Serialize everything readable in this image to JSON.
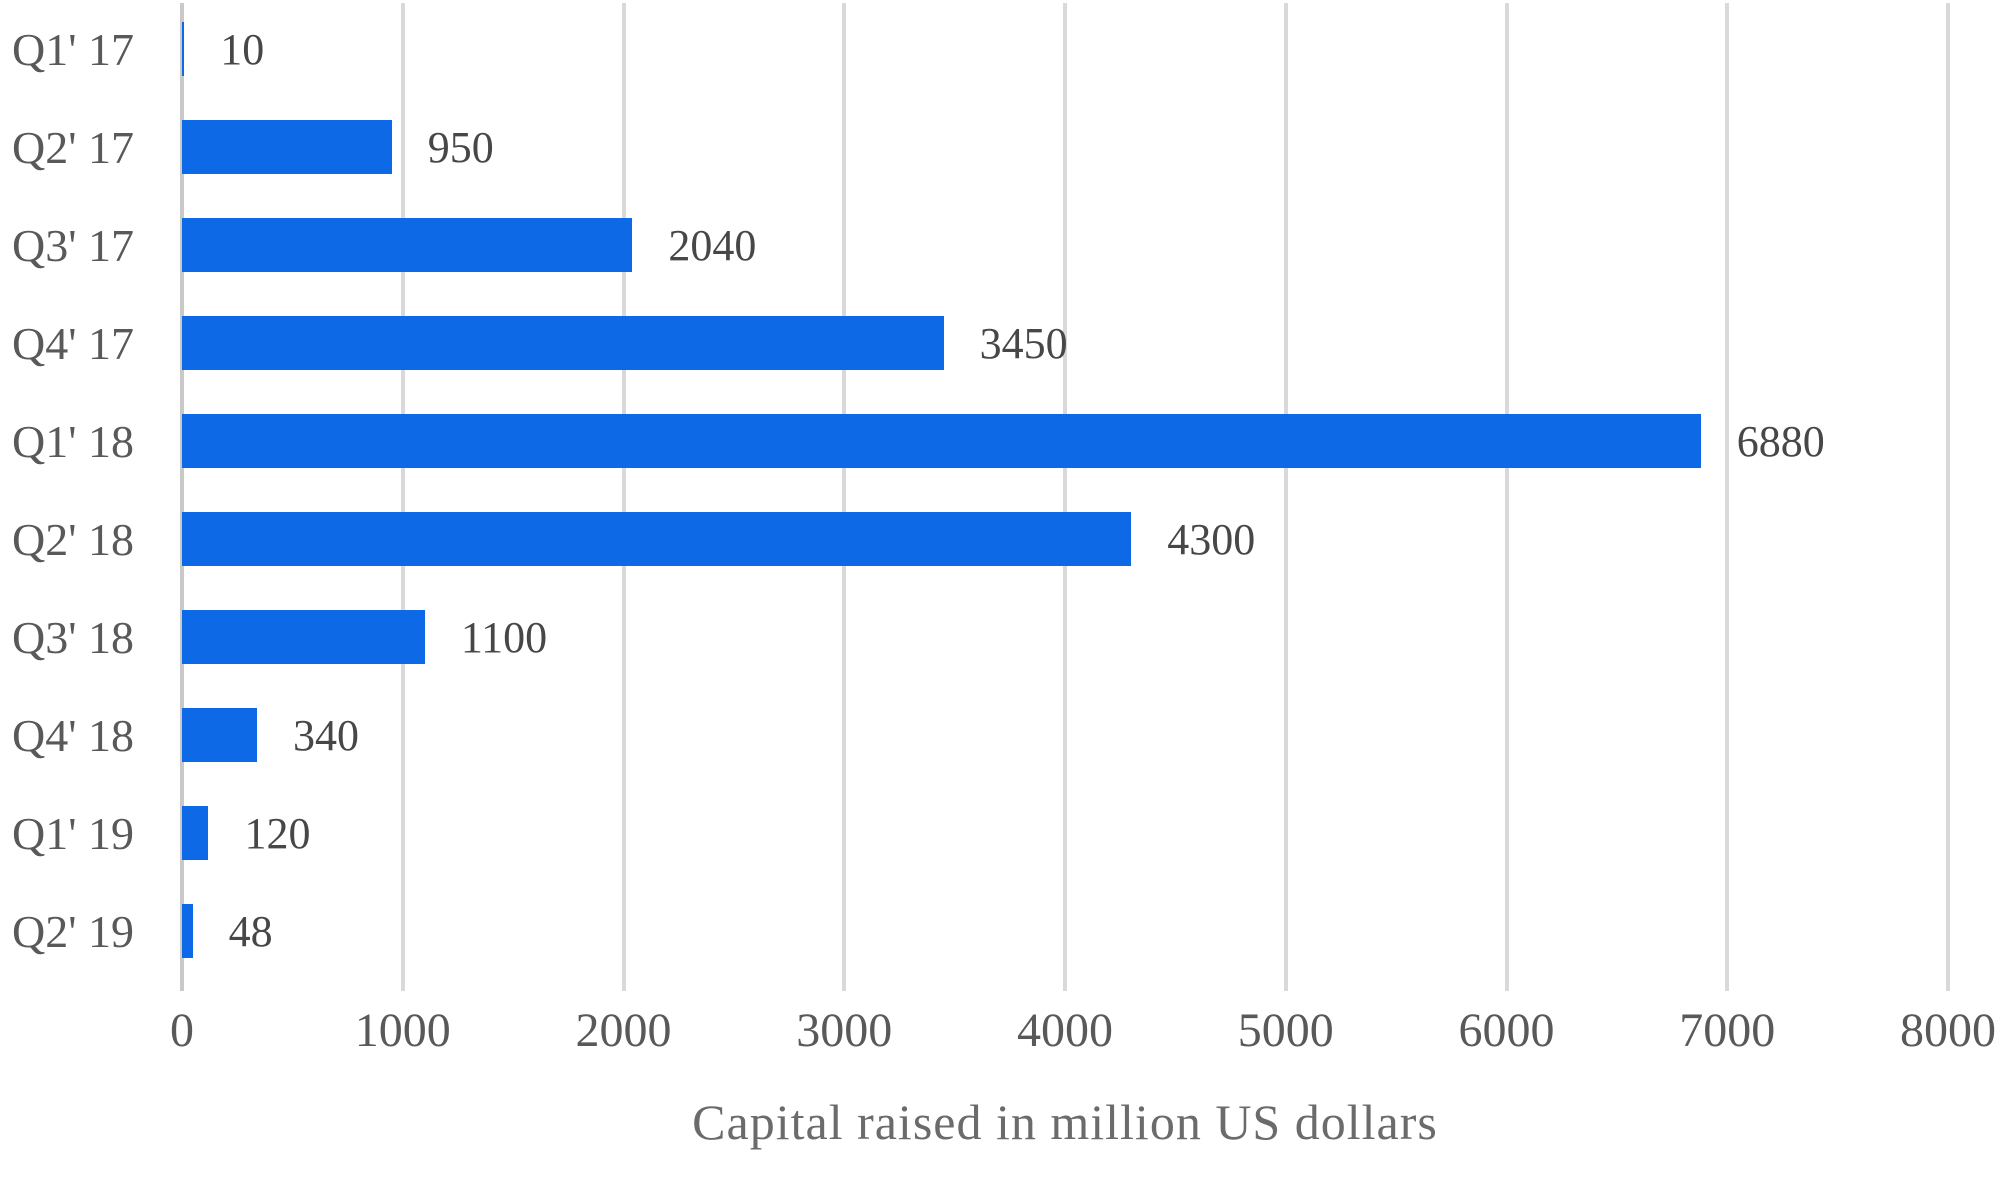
{
  "chart_data": {
    "type": "bar",
    "orientation": "horizontal",
    "categories": [
      "Q1' 17",
      "Q2' 17",
      "Q3' 17",
      "Q4' 17",
      "Q1' 18",
      "Q2' 18",
      "Q3' 18",
      "Q4' 18",
      "Q1' 19",
      "Q2' 19"
    ],
    "values": [
      10,
      950,
      2040,
      3450,
      6880,
      4300,
      1100,
      340,
      120,
      48
    ],
    "title": "",
    "xlabel": "Capital raised in million US dollars",
    "ylabel": "",
    "xlim": [
      0,
      8000
    ],
    "xticks": [
      0,
      1000,
      2000,
      3000,
      4000,
      5000,
      6000,
      7000,
      8000
    ],
    "grid": true,
    "legend": false,
    "data_labels": true,
    "colors": {
      "bar": "#0d69e6",
      "gridline": "#d9d9d9",
      "axis_line": "#c9c9c9",
      "category_text": "#595959",
      "value_text": "#474747",
      "tick_text": "#595959",
      "axis_title_text": "#6b6b6b",
      "background": "#ffffff"
    }
  }
}
